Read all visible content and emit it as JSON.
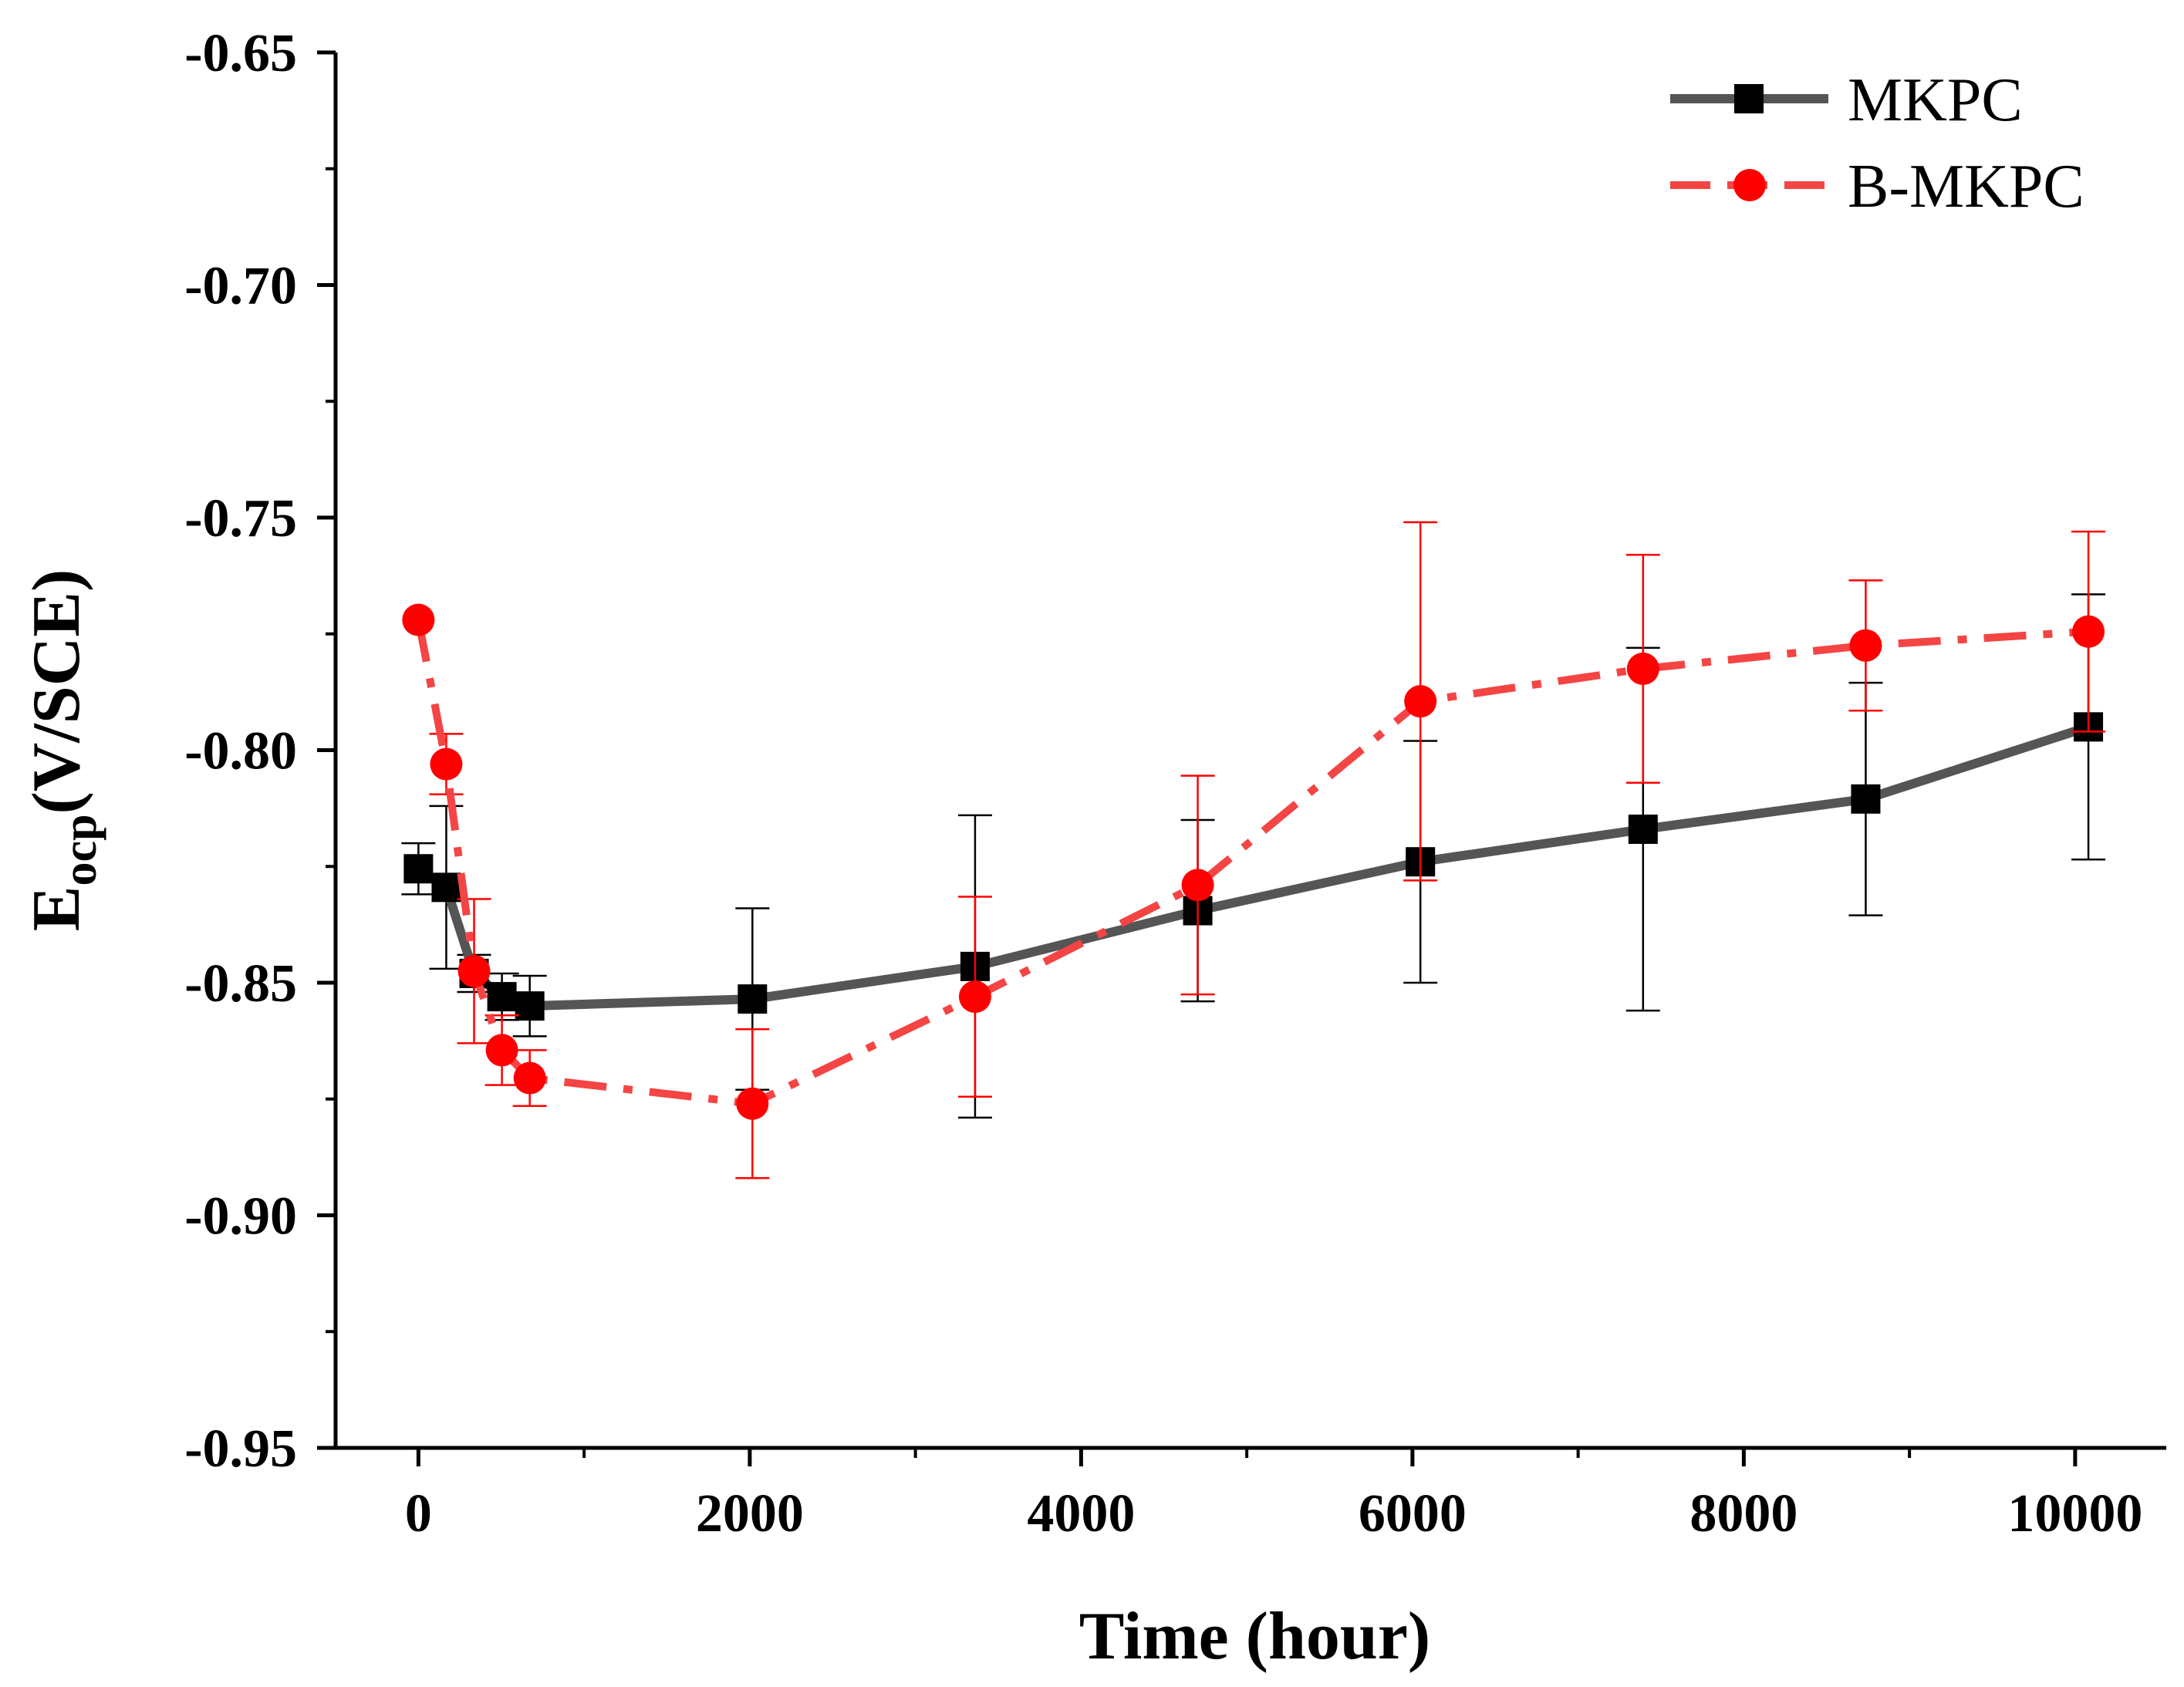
{
  "chart_data": {
    "type": "line",
    "title": "",
    "xlabel": "Time (hour)",
    "ylabel_main": "E",
    "ylabel_sub": "ocp",
    "ylabel_unit": "(V/SCE)",
    "xlim": [
      -500,
      10550
    ],
    "ylim": [
      -0.95,
      -0.65
    ],
    "xticks": [
      0,
      2000,
      4000,
      6000,
      8000,
      10000
    ],
    "xtick_labels": [
      "0",
      "2000",
      "4000",
      "6000",
      "8000",
      "10000"
    ],
    "yticks": [
      -0.95,
      -0.9,
      -0.85,
      -0.8,
      -0.75,
      -0.7,
      -0.65
    ],
    "ytick_labels": [
      "-0.95",
      "-0.90",
      "-0.85",
      "-0.80",
      "-0.75",
      "-0.70",
      "-0.65"
    ],
    "legend_position": "top-right",
    "grid": false,
    "series": [
      {
        "name": "MKPC",
        "color": "#555555",
        "marker": "square",
        "marker_color": "#000000",
        "line_style": "solid",
        "error_color": "#000000",
        "x": [
          0,
          168,
          336,
          504,
          672,
          2016,
          3360,
          4704,
          6048,
          7392,
          8736,
          10080
        ],
        "y": [
          -0.8255,
          -0.8295,
          -0.848,
          -0.853,
          -0.855,
          -0.8535,
          -0.8465,
          -0.8345,
          -0.824,
          -0.817,
          -0.8105,
          -0.795
        ],
        "err": [
          0.0055,
          0.0175,
          0.004,
          0.005,
          0.0065,
          0.0195,
          0.0325,
          0.0195,
          0.026,
          0.039,
          0.025,
          0.0285
        ]
      },
      {
        "name": "B-MKPC",
        "color": "#f44444",
        "marker": "circle",
        "marker_color": "#ff0000",
        "line_style": "dashdot",
        "error_color": "#ff0000",
        "x": [
          0,
          168,
          336,
          504,
          672,
          2016,
          3360,
          4704,
          6048,
          7392,
          8736,
          10080
        ],
        "y": [
          -0.772,
          -0.803,
          -0.8475,
          -0.8645,
          -0.8705,
          -0.876,
          -0.853,
          -0.829,
          -0.7895,
          -0.7825,
          -0.7775,
          -0.7745
        ],
        "err": [
          0.0,
          0.0065,
          0.0155,
          0.0075,
          0.006,
          0.016,
          0.0215,
          0.0235,
          0.0385,
          0.0245,
          0.014,
          0.0215
        ]
      }
    ]
  }
}
